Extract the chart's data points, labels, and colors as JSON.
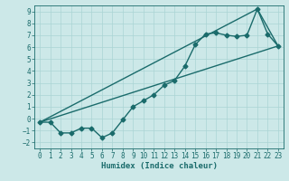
{
  "xlabel": "Humidex (Indice chaleur)",
  "xlim": [
    0,
    23
  ],
  "ylim": [
    -2,
    9
  ],
  "xticks": [
    0,
    1,
    2,
    3,
    4,
    5,
    6,
    7,
    8,
    9,
    10,
    11,
    12,
    13,
    14,
    15,
    16,
    17,
    18,
    19,
    20,
    21,
    22,
    23
  ],
  "yticks": [
    -2,
    -1,
    0,
    1,
    2,
    3,
    4,
    5,
    6,
    7,
    8,
    9
  ],
  "bg_color": "#cce8e8",
  "grid_color": "#aad4d4",
  "line_color": "#1a6b6b",
  "line1_x": [
    0,
    1,
    2,
    3,
    4,
    5,
    6,
    7,
    8,
    9,
    10,
    11,
    12,
    13,
    14,
    15,
    16,
    17,
    18,
    19,
    20,
    21,
    22,
    23
  ],
  "line1_y": [
    -0.3,
    -0.3,
    -1.2,
    -1.2,
    -0.8,
    -0.8,
    -1.6,
    -1.2,
    -0.1,
    1.0,
    1.5,
    2.0,
    2.8,
    3.2,
    4.4,
    6.2,
    7.1,
    7.2,
    7.0,
    6.9,
    7.0,
    9.2,
    7.1,
    6.1
  ],
  "line2_x": [
    0,
    21,
    23
  ],
  "line2_y": [
    -0.3,
    9.2,
    6.1
  ],
  "line3_x": [
    0,
    23
  ],
  "line3_y": [
    -0.3,
    6.1
  ],
  "marker_size": 2.5,
  "line_width": 1.0,
  "font_size_tick": 5.5,
  "font_size_label": 6.5
}
